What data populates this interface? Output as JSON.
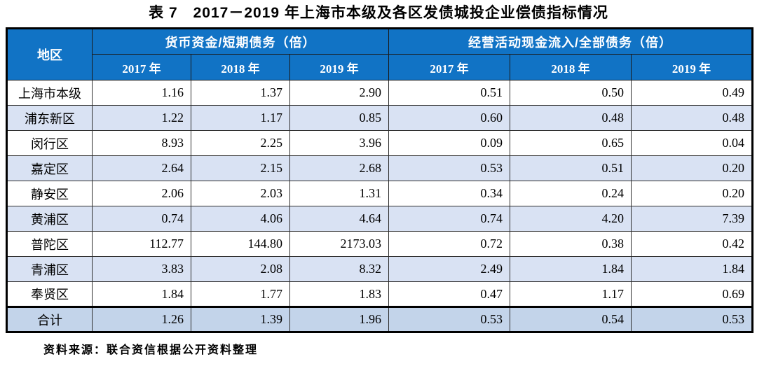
{
  "title": "表 7　2017－2019 年上海市本级及各区发债城投企业偿债指标情况",
  "table": {
    "corner_header": "地区",
    "groups": [
      {
        "label": "货币资金/短期债务（倍）",
        "years": [
          "2017 年",
          "2018 年",
          "2019 年"
        ]
      },
      {
        "label": "经营活动现金流入/全部债务（倍）",
        "years": [
          "2017 年",
          "2018 年",
          "2019 年"
        ]
      }
    ],
    "rows": [
      {
        "region": "上海市本级",
        "values": [
          "1.16",
          "1.37",
          "2.90",
          "0.51",
          "0.50",
          "0.49"
        ]
      },
      {
        "region": "浦东新区",
        "values": [
          "1.22",
          "1.17",
          "0.85",
          "0.60",
          "0.48",
          "0.48"
        ]
      },
      {
        "region": "闵行区",
        "values": [
          "8.93",
          "2.25",
          "3.96",
          "0.09",
          "0.65",
          "0.04"
        ]
      },
      {
        "region": "嘉定区",
        "values": [
          "2.64",
          "2.15",
          "2.68",
          "0.53",
          "0.51",
          "0.20"
        ]
      },
      {
        "region": "静安区",
        "values": [
          "2.06",
          "2.03",
          "1.31",
          "0.34",
          "0.24",
          "0.20"
        ]
      },
      {
        "region": "黄浦区",
        "values": [
          "0.74",
          "4.06",
          "4.64",
          "0.74",
          "4.20",
          "7.39"
        ]
      },
      {
        "region": "普陀区",
        "values": [
          "112.77",
          "144.80",
          "2173.03",
          "0.72",
          "0.38",
          "0.42"
        ]
      },
      {
        "region": "青浦区",
        "values": [
          "3.83",
          "2.08",
          "8.32",
          "2.49",
          "1.84",
          "1.84"
        ]
      },
      {
        "region": "奉贤区",
        "values": [
          "1.84",
          "1.77",
          "1.83",
          "0.47",
          "1.17",
          "0.69"
        ]
      },
      {
        "region": "合计",
        "values": [
          "1.26",
          "1.39",
          "1.96",
          "0.53",
          "0.54",
          "0.53"
        ]
      }
    ]
  },
  "source_note": "资料来源：联合资信根据公开资料整理",
  "colors": {
    "header_bg": "#1173C5",
    "header_text": "#FFFFFF",
    "stripe_bg": "#D9E2F3",
    "total_bg": "#C3D4EA"
  }
}
